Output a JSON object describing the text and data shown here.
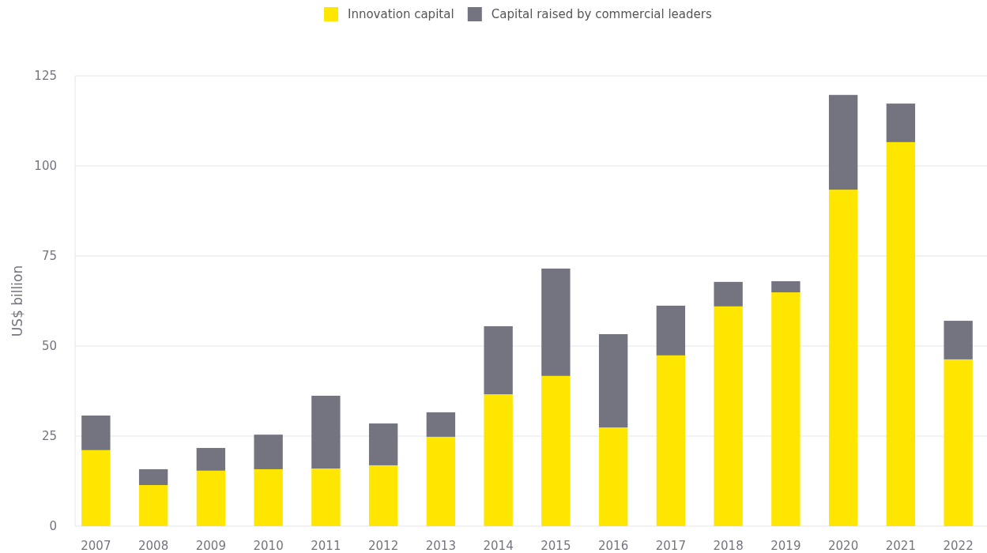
{
  "chart_data": {
    "type": "bar",
    "stacked": true,
    "ylabel": "US$ billion",
    "categories": [
      "2007",
      "2008",
      "2009",
      "2010",
      "2011",
      "2012",
      "2013",
      "2014",
      "2015",
      "2016",
      "2017",
      "2018",
      "2019",
      "2020",
      "2021",
      "2022"
    ],
    "series": [
      {
        "name": "Innovation capital",
        "color": "#ffe600",
        "values": [
          21.1,
          11.4,
          15.4,
          15.8,
          16.0,
          16.9,
          24.8,
          36.6,
          41.7,
          27.4,
          47.4,
          61.0,
          64.9,
          93.4,
          106.6,
          46.3
        ]
      },
      {
        "name": "Capital raised by commercial leaders",
        "color": "#747480",
        "values": [
          9.6,
          4.4,
          6.3,
          9.6,
          20.2,
          11.6,
          6.8,
          18.9,
          29.8,
          25.9,
          13.8,
          6.8,
          3.1,
          26.3,
          10.7,
          10.7
        ]
      }
    ],
    "ylim": [
      0,
      125
    ],
    "yticks": [
      0,
      25,
      50,
      75,
      100,
      125
    ],
    "grid": "y",
    "legend": "top"
  }
}
